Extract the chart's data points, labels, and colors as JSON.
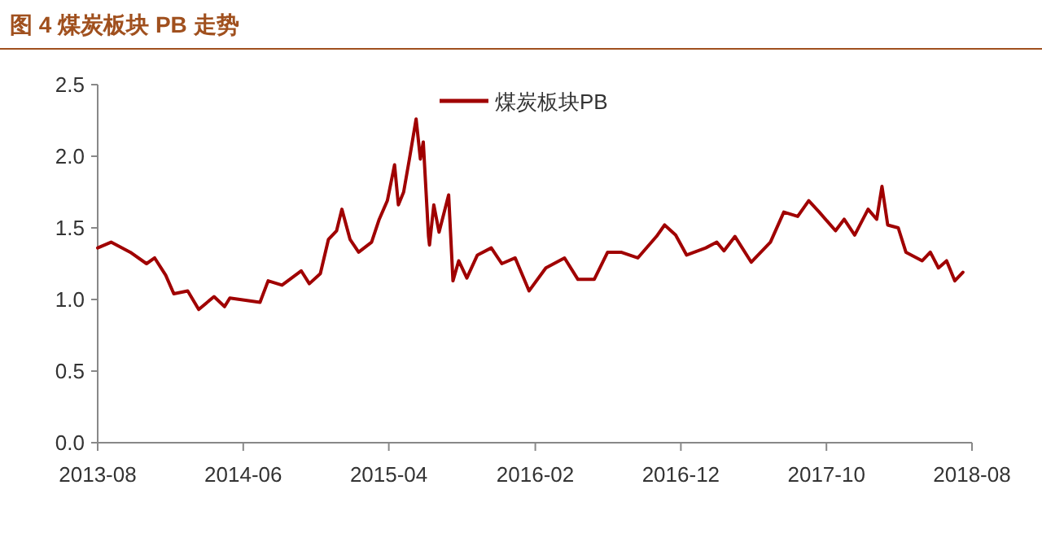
{
  "chart_data": {
    "type": "line",
    "title": "图 4 煤炭板块 PB 走势",
    "x": [
      "2013-08-01",
      "2013-08-29",
      "2013-10-08",
      "2013-11-11",
      "2013-11-28",
      "2013-12-21",
      "2014-01-07",
      "2014-02-05",
      "2014-02-28",
      "2014-04-01",
      "2014-04-23",
      "2014-05-04",
      "2014-07-06",
      "2014-07-23",
      "2014-08-21",
      "2014-09-30",
      "2014-10-17",
      "2014-11-09",
      "2014-11-26",
      "2014-12-13",
      "2014-12-24",
      "2015-01-10",
      "2015-01-28",
      "2015-02-24",
      "2015-03-12",
      "2015-03-29",
      "2015-04-13",
      "2015-04-21",
      "2015-05-02",
      "2015-05-14",
      "2015-05-28",
      "2015-06-06",
      "2015-06-12",
      "2015-06-23",
      "2015-06-25",
      "2015-07-04",
      "2015-07-15",
      "2015-08-04",
      "2015-08-13",
      "2015-08-25",
      "2015-09-11",
      "2015-10-03",
      "2015-11-01",
      "2015-11-23",
      "2015-12-21",
      "2016-01-19",
      "2016-02-23",
      "2016-04-02",
      "2016-04-30",
      "2016-06-03",
      "2016-07-01",
      "2016-07-29",
      "2016-09-02",
      "2016-10-11",
      "2016-10-28",
      "2016-11-20",
      "2016-12-13",
      "2017-01-22",
      "2017-02-14",
      "2017-03-01",
      "2017-03-24",
      "2017-04-27",
      "2017-06-06",
      "2017-07-04",
      "2017-08-02",
      "2017-08-25",
      "2017-09-16",
      "2017-10-20",
      "2017-11-07",
      "2017-11-29",
      "2017-12-27",
      "2018-01-14",
      "2018-01-25",
      "2018-02-06",
      "2018-02-28",
      "2018-03-16",
      "2018-04-19",
      "2018-05-06",
      "2018-05-23",
      "2018-06-09",
      "2018-06-26",
      "2018-07-13"
    ],
    "series": [
      {
        "name": "煤炭板块PB",
        "color": "#a00000",
        "values": [
          1.36,
          1.4,
          1.33,
          1.25,
          1.29,
          1.17,
          1.04,
          1.06,
          0.93,
          1.02,
          0.95,
          1.01,
          0.98,
          1.13,
          1.1,
          1.2,
          1.11,
          1.18,
          1.42,
          1.48,
          1.63,
          1.42,
          1.33,
          1.4,
          1.56,
          1.69,
          1.94,
          1.66,
          1.75,
          1.98,
          2.26,
          1.98,
          2.1,
          1.44,
          1.38,
          1.66,
          1.47,
          1.73,
          1.13,
          1.27,
          1.15,
          1.31,
          1.36,
          1.25,
          1.29,
          1.06,
          1.22,
          1.29,
          1.14,
          1.14,
          1.33,
          1.33,
          1.29,
          1.44,
          1.52,
          1.45,
          1.31,
          1.36,
          1.4,
          1.34,
          1.44,
          1.26,
          1.4,
          1.61,
          1.58,
          1.69,
          1.61,
          1.48,
          1.56,
          1.45,
          1.63,
          1.56,
          1.79,
          1.52,
          1.5,
          1.33,
          1.27,
          1.33,
          1.22,
          1.27,
          1.13,
          1.19
        ]
      }
    ],
    "xlim": [
      "2013-08",
      "2018-08"
    ],
    "xticks": [
      "2013-08",
      "2014-06",
      "2015-04",
      "2016-02",
      "2016-12",
      "2017-10",
      "2018-08"
    ],
    "ylim": [
      0,
      2.5
    ],
    "yticks": [
      {
        "value": 0,
        "label": "0.0"
      },
      {
        "value": 0.5,
        "label": "0.5"
      },
      {
        "value": 1,
        "label": "1.0"
      },
      {
        "value": 1.5,
        "label": "1.5"
      },
      {
        "value": 2,
        "label": "2.0"
      },
      {
        "value": 2.5,
        "label": "2.5"
      }
    ],
    "legend": "top",
    "grid": false,
    "marker": "none",
    "line_style": "solid"
  }
}
